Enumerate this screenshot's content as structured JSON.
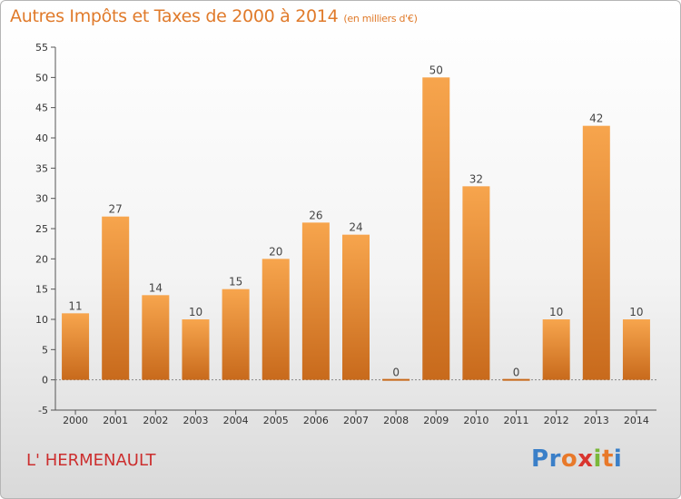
{
  "title": "Autres Impôts et Taxes de 2000 à 2014",
  "subtitle": "(en milliers d'€)",
  "commune": "L' HERMENAULT",
  "brand": {
    "letters": [
      "P",
      "r",
      "o",
      "x",
      "i",
      "t",
      "i"
    ],
    "colors": [
      "#3a7fc8",
      "#3a7fc8",
      "#e8792a",
      "#d9352f",
      "#7ab83a",
      "#e8792a",
      "#3a7fc8"
    ]
  },
  "colors": {
    "bar_top": "#f7a54d",
    "bar_bottom": "#c86a1c",
    "title": "#e07a2a",
    "commune": "#cc2e2e"
  },
  "chart_data": {
    "type": "bar",
    "categories": [
      "2000",
      "2001",
      "2002",
      "2003",
      "2004",
      "2005",
      "2006",
      "2007",
      "2008",
      "2009",
      "2010",
      "2011",
      "2012",
      "2013",
      "2014"
    ],
    "values": [
      11,
      27,
      14,
      10,
      15,
      20,
      26,
      24,
      0,
      50,
      32,
      0,
      10,
      42,
      10
    ],
    "ylim": [
      -5,
      55
    ],
    "yticks": [
      -5,
      0,
      5,
      10,
      15,
      20,
      25,
      30,
      35,
      40,
      45,
      50,
      55
    ],
    "grid": false
  }
}
